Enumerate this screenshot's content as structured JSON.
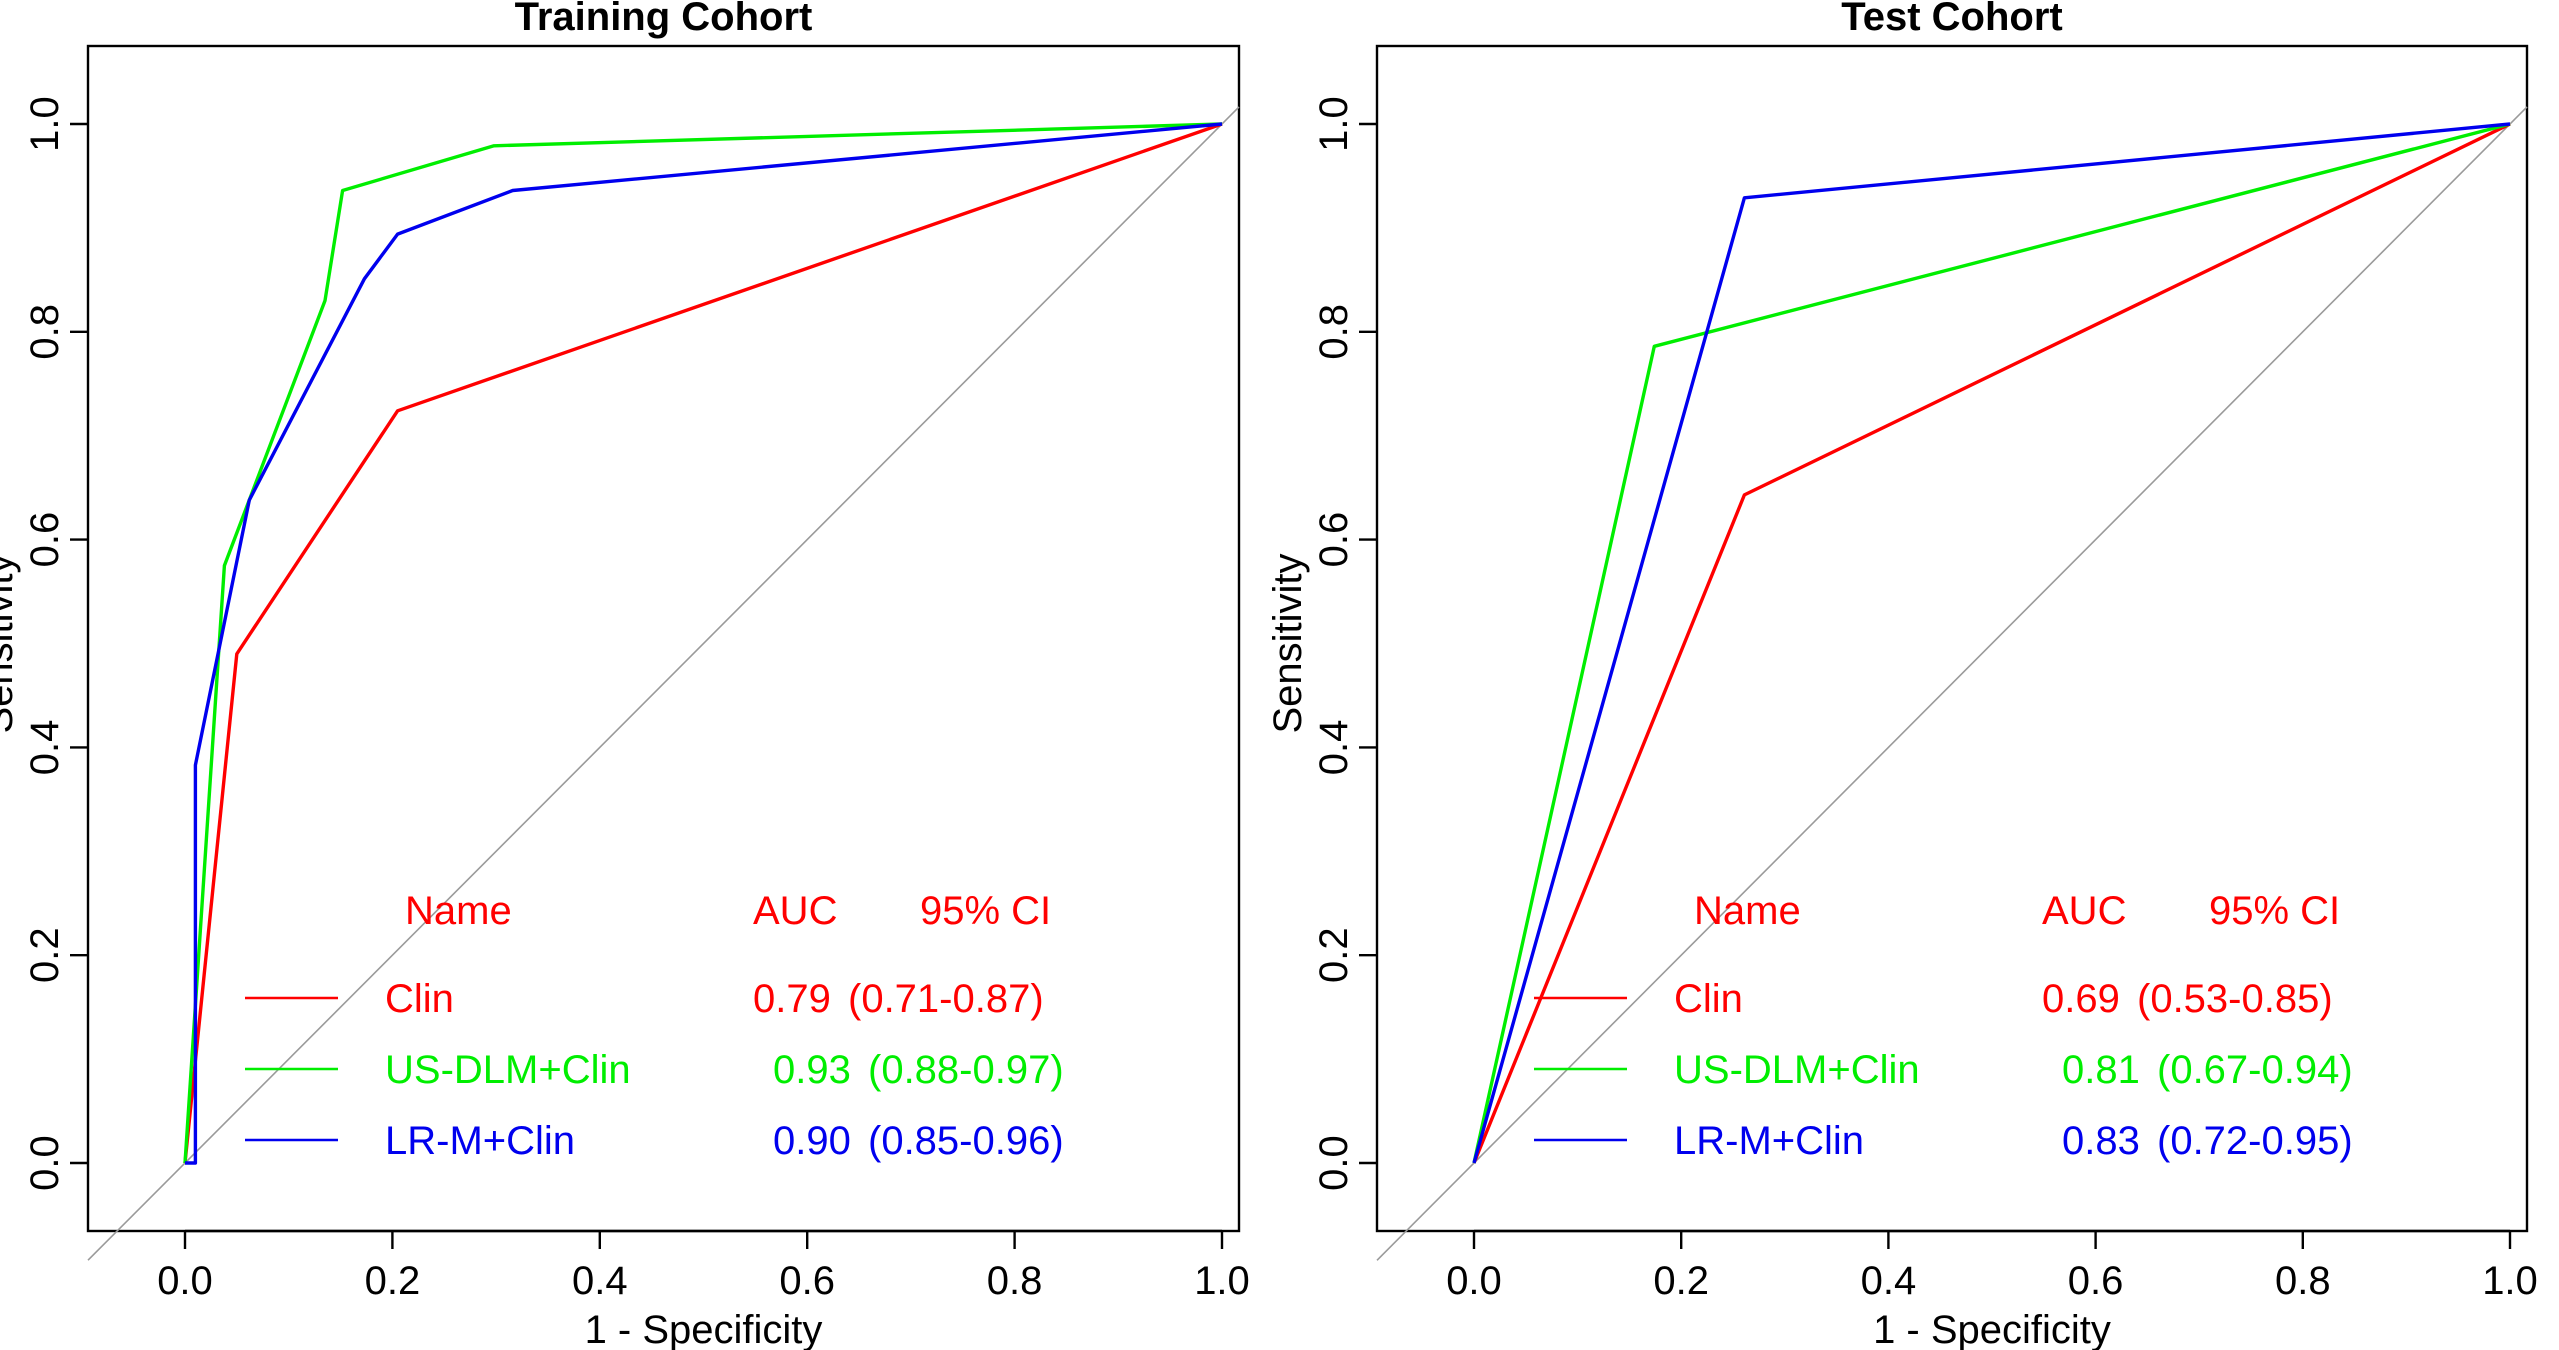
{
  "chart_data": [
    {
      "type": "line",
      "title": "Training Cohort",
      "xlabel": "1 - Specificity",
      "ylabel": "Sensitivity",
      "xlim": [
        0,
        1
      ],
      "ylim": [
        0,
        1
      ],
      "xticks": [
        "0.0",
        "0.2",
        "0.4",
        "0.6",
        "0.8",
        "1.0"
      ],
      "yticks": [
        "0.0",
        "0.2",
        "0.4",
        "0.6",
        "0.8",
        "1.0"
      ],
      "reference_line": "diagonal",
      "legend": {
        "position": "bottom-right",
        "headers": {
          "name": "Name",
          "auc": "AUC",
          "ci": "95% CI"
        }
      },
      "series": [
        {
          "name": "Clin",
          "color": "#ff0000",
          "auc": "0.79",
          "ci": "(0.71-0.87)",
          "x": [
            0,
            0.05,
            0.205,
            1.0
          ],
          "y": [
            0,
            0.49,
            0.724,
            1.0
          ]
        },
        {
          "name": "US-DLM+Clin",
          "color": "#00ee00",
          "auc": "0.93",
          "ci": "(0.88-0.97)",
          "x": [
            0,
            0.038,
            0.135,
            0.152,
            0.298,
            1.0
          ],
          "y": [
            0,
            0.575,
            0.83,
            0.936,
            0.979,
            1.0
          ]
        },
        {
          "name": "LR-M+Clin",
          "color": "#0000ee",
          "auc": "0.90",
          "ci": "(0.85-0.96)",
          "x": [
            0,
            0.01,
            0.01,
            0.062,
            0.173,
            0.205,
            0.316,
            1.0
          ],
          "y": [
            0,
            0.0,
            0.383,
            0.638,
            0.851,
            0.894,
            0.936,
            1.0
          ]
        }
      ]
    },
    {
      "type": "line",
      "title": "Test Cohort",
      "xlabel": "1 - Specificity",
      "ylabel": "Sensitivity",
      "xlim": [
        0,
        1
      ],
      "ylim": [
        0,
        1
      ],
      "xticks": [
        "0.0",
        "0.2",
        "0.4",
        "0.6",
        "0.8",
        "1.0"
      ],
      "yticks": [
        "0.0",
        "0.2",
        "0.4",
        "0.6",
        "0.8",
        "1.0"
      ],
      "reference_line": "diagonal",
      "legend": {
        "position": "bottom-right",
        "headers": {
          "name": "Name",
          "auc": "AUC",
          "ci": "95% CI"
        }
      },
      "series": [
        {
          "name": "Clin",
          "color": "#ff0000",
          "auc": "0.69",
          "ci": "(0.53-0.85)",
          "x": [
            0,
            0.261,
            1.0
          ],
          "y": [
            0,
            0.643,
            1.0
          ]
        },
        {
          "name": "US-DLM+Clin",
          "color": "#00ee00",
          "auc": "0.81",
          "ci": "(0.67-0.94)",
          "x": [
            0,
            0.174,
            1.0
          ],
          "y": [
            0,
            0.786,
            1.0
          ]
        },
        {
          "name": "LR-M+Clin",
          "color": "#0000ee",
          "auc": "0.83",
          "ci": "(0.72-0.95)",
          "x": [
            0,
            0.261,
            1.0
          ],
          "y": [
            0,
            0.929,
            1.0
          ]
        }
      ]
    }
  ]
}
